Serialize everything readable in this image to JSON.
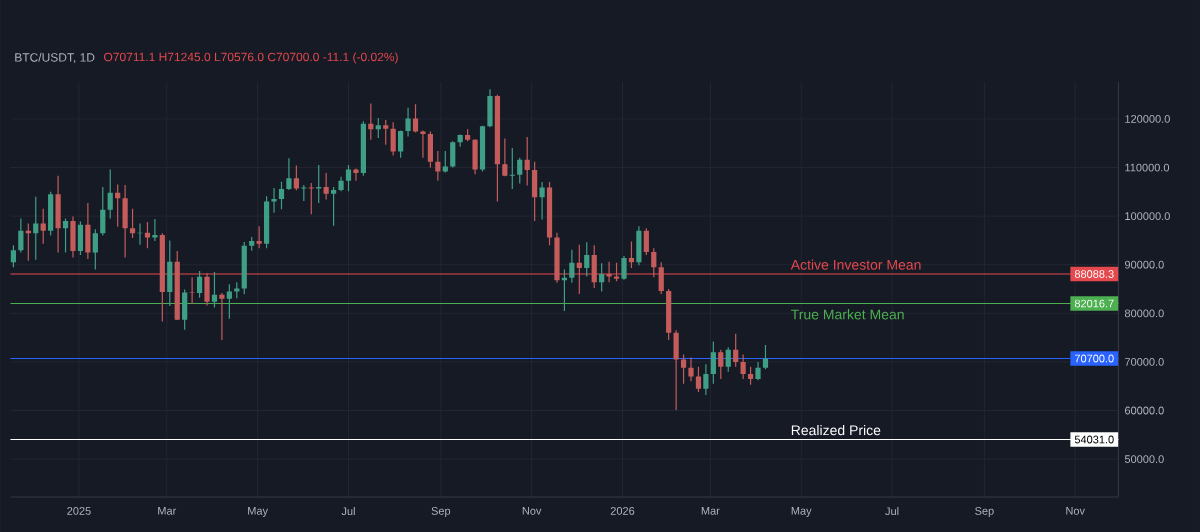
{
  "chart_data": {
    "type": "candlestick",
    "title": "BTC/USDT, 1D",
    "subtitle": "O70711.1 H71245.0 L70576.0 C70700.0 -11.1 (-0.02%)",
    "x": [
      "2024-11-18",
      "2024-11-23",
      "2024-11-28",
      "2024-12-03",
      "2024-12-08",
      "2024-12-13",
      "2024-12-18",
      "2024-12-23",
      "2024-12-28",
      "2025-01-02",
      "2025-01-07",
      "2025-01-12",
      "2025-01-17",
      "2025-01-22",
      "2025-01-27",
      "2025-02-01",
      "2025-02-06",
      "2025-02-11",
      "2025-02-16",
      "2025-02-21",
      "2025-02-26",
      "2025-03-03",
      "2025-03-08",
      "2025-03-13",
      "2025-03-18",
      "2025-03-23",
      "2025-03-28",
      "2025-04-02",
      "2025-04-07",
      "2025-04-12",
      "2025-04-17",
      "2025-04-22",
      "2025-04-27",
      "2025-05-02",
      "2025-05-07",
      "2025-05-12",
      "2025-05-17",
      "2025-05-22",
      "2025-05-27",
      "2025-06-01",
      "2025-06-06",
      "2025-06-11",
      "2025-06-16",
      "2025-06-21",
      "2025-06-26",
      "2025-07-01",
      "2025-07-06",
      "2025-07-11",
      "2025-07-16",
      "2025-07-21",
      "2025-07-26",
      "2025-07-31",
      "2025-08-05",
      "2025-08-10",
      "2025-08-15",
      "2025-08-20",
      "2025-08-25",
      "2025-08-30",
      "2025-09-04",
      "2025-09-09",
      "2025-09-14",
      "2025-09-19",
      "2025-09-24",
      "2025-09-29",
      "2025-10-04",
      "2025-10-09",
      "2025-10-14",
      "2025-10-19",
      "2025-10-24",
      "2025-10-29",
      "2025-11-03",
      "2025-11-08",
      "2025-11-13",
      "2025-11-18",
      "2025-11-23",
      "2025-11-28",
      "2025-12-03",
      "2025-12-08",
      "2025-12-13",
      "2025-12-18",
      "2025-12-23",
      "2025-12-28",
      "2026-01-02",
      "2026-01-07",
      "2026-01-12",
      "2026-01-17",
      "2026-01-22",
      "2026-01-27",
      "2026-02-01",
      "2026-02-06",
      "2026-02-11",
      "2026-02-16",
      "2026-02-21",
      "2026-02-26",
      "2026-03-03",
      "2026-03-08",
      "2026-03-13",
      "2026-03-18",
      "2026-03-23",
      "2026-03-28",
      "2026-04-02",
      "2026-04-07"
    ],
    "ohlc": [
      [
        90500,
        94000,
        89500,
        93000
      ],
      [
        93000,
        99500,
        92500,
        97000
      ],
      [
        97000,
        98500,
        90800,
        96500
      ],
      [
        96500,
        104000,
        91000,
        98500
      ],
      [
        98500,
        101500,
        94300,
        97000
      ],
      [
        97000,
        105000,
        96000,
        104500
      ],
      [
        104500,
        108300,
        92500,
        97500
      ],
      [
        97500,
        99500,
        92500,
        99000
      ],
      [
        99000,
        99900,
        91500,
        92800
      ],
      [
        92800,
        98900,
        92000,
        98200
      ],
      [
        98200,
        102700,
        91200,
        92500
      ],
      [
        92500,
        97300,
        89000,
        96500
      ],
      [
        96500,
        106000,
        96000,
        101300
      ],
      [
        101300,
        109600,
        99500,
        104800
      ],
      [
        104800,
        106500,
        97800,
        103700
      ],
      [
        103700,
        106400,
        91500,
        97500
      ],
      [
        97500,
        101500,
        95500,
        96500
      ],
      [
        96500,
        98500,
        94100,
        96600
      ],
      [
        96600,
        98800,
        93400,
        95600
      ],
      [
        95600,
        99400,
        94900,
        96100
      ],
      [
        96100,
        96500,
        78300,
        84400
      ],
      [
        84400,
        95000,
        81500,
        90600
      ],
      [
        90600,
        92800,
        78600,
        78700
      ],
      [
        78700,
        84900,
        76600,
        84300
      ],
      [
        84300,
        87400,
        81900,
        84200
      ],
      [
        84200,
        88700,
        83200,
        87500
      ],
      [
        87500,
        88300,
        81600,
        82400
      ],
      [
        82400,
        88500,
        81200,
        83800
      ],
      [
        83800,
        84200,
        74500,
        83000
      ],
      [
        83000,
        86000,
        78900,
        84500
      ],
      [
        84500,
        86400,
        83100,
        85100
      ],
      [
        85100,
        94700,
        83900,
        93900
      ],
      [
        93900,
        95700,
        92900,
        94900
      ],
      [
        94900,
        97900,
        93400,
        94300
      ],
      [
        94300,
        104100,
        93400,
        103000
      ],
      [
        103000,
        105800,
        100700,
        103500
      ],
      [
        103500,
        107100,
        101400,
        105600
      ],
      [
        105600,
        111900,
        105400,
        107800
      ],
      [
        107800,
        110400,
        105300,
        105700
      ],
      [
        105700,
        106400,
        103100,
        105900
      ],
      [
        105900,
        106800,
        100400,
        105700
      ],
      [
        105700,
        110500,
        102700,
        106000
      ],
      [
        106000,
        108900,
        103400,
        104600
      ],
      [
        104600,
        106000,
        98000,
        105400
      ],
      [
        105400,
        108100,
        105100,
        107300
      ],
      [
        107300,
        110500,
        105100,
        109600
      ],
      [
        109600,
        109800,
        107300,
        108900
      ],
      [
        108900,
        119500,
        108300,
        119000
      ],
      [
        119000,
        123200,
        115700,
        117900
      ],
      [
        117900,
        120200,
        116100,
        118700
      ],
      [
        118700,
        119800,
        114700,
        118000
      ],
      [
        118000,
        119300,
        112500,
        113300
      ],
      [
        113300,
        117600,
        112000,
        117500
      ],
      [
        117500,
        122300,
        116400,
        120100
      ],
      [
        120100,
        123000,
        117200,
        117400
      ],
      [
        117400,
        117600,
        112000,
        116900
      ],
      [
        116900,
        117400,
        110000,
        111200
      ],
      [
        111200,
        113400,
        107300,
        109200
      ],
      [
        109200,
        113400,
        109000,
        110200
      ],
      [
        110200,
        115400,
        110000,
        115200
      ],
      [
        115200,
        116800,
        114300,
        116700
      ],
      [
        116700,
        117900,
        115400,
        115700
      ],
      [
        115700,
        115800,
        108600,
        109600
      ],
      [
        109600,
        118600,
        109200,
        118500
      ],
      [
        118500,
        126100,
        118300,
        124700
      ],
      [
        124700,
        125000,
        103000,
        110700
      ],
      [
        110700,
        116000,
        108200,
        108300
      ],
      [
        108300,
        114000,
        105600,
        108500
      ],
      [
        108500,
        112000,
        106700,
        111600
      ],
      [
        111600,
        116300,
        106300,
        109500
      ],
      [
        109500,
        111200,
        99000,
        103900
      ],
      [
        103900,
        107000,
        99300,
        105900
      ],
      [
        105900,
        107000,
        94000,
        95600
      ],
      [
        95600,
        96600,
        86300,
        86800
      ],
      [
        86800,
        89000,
        80500,
        87300
      ],
      [
        87300,
        93100,
        86300,
        90400
      ],
      [
        90400,
        94100,
        84000,
        89300
      ],
      [
        89300,
        94600,
        87600,
        92000
      ],
      [
        92000,
        94000,
        85200,
        86400
      ],
      [
        86400,
        90300,
        84500,
        88100
      ],
      [
        88100,
        90600,
        86400,
        87600
      ],
      [
        87600,
        90400,
        86600,
        87100
      ],
      [
        87100,
        91800,
        86900,
        91400
      ],
      [
        91400,
        94800,
        89300,
        90500
      ],
      [
        90500,
        97900,
        89900,
        97000
      ],
      [
        97000,
        97500,
        92000,
        92600
      ],
      [
        92600,
        93400,
        87400,
        89500
      ],
      [
        89500,
        90500,
        84000,
        84600
      ],
      [
        84600,
        85000,
        74500,
        76000
      ],
      [
        76000,
        76500,
        60100,
        70500
      ],
      [
        70500,
        71500,
        65500,
        68800
      ],
      [
        68800,
        70900,
        66000,
        67000
      ],
      [
        67000,
        69000,
        63800,
        64500
      ],
      [
        64500,
        69500,
        63200,
        67500
      ],
      [
        67500,
        74200,
        65500,
        72000
      ],
      [
        72000,
        72500,
        66500,
        69000
      ],
      [
        69000,
        73000,
        68000,
        72500
      ],
      [
        72500,
        75800,
        69000,
        70000
      ],
      [
        70000,
        71500,
        66500,
        67500
      ],
      [
        67500,
        69000,
        65300,
        66500
      ],
      [
        66500,
        70000,
        66200,
        68800
      ],
      [
        68800,
        73500,
        68500,
        70700
      ]
    ],
    "colors": [
      "#3f9f86",
      "#3f9f86",
      "#c45c5c",
      "#3f9f86",
      "#c45c5c",
      "#3f9f86",
      "#c45c5c",
      "#3f9f86",
      "#c45c5c",
      "#3f9f86",
      "#c45c5c",
      "#3f9f86",
      "#3f9f86",
      "#3f9f86",
      "#c45c5c",
      "#c45c5c",
      "#c45c5c",
      "#3f9f86",
      "#c45c5c",
      "#3f9f86",
      "#c45c5c",
      "#3f9f86",
      "#c45c5c",
      "#3f9f86",
      "#c45c5c",
      "#3f9f86",
      "#c45c5c",
      "#3f9f86",
      "#c45c5c",
      "#3f9f86",
      "#3f9f86",
      "#3f9f86",
      "#3f9f86",
      "#c45c5c",
      "#3f9f86",
      "#3f9f86",
      "#3f9f86",
      "#3f9f86",
      "#c45c5c",
      "#3f9f86",
      "#c45c5c",
      "#3f9f86",
      "#c45c5c",
      "#3f9f86",
      "#3f9f86",
      "#3f9f86",
      "#c45c5c",
      "#3f9f86",
      "#c45c5c",
      "#3f9f86",
      "#c45c5c",
      "#c45c5c",
      "#3f9f86",
      "#3f9f86",
      "#c45c5c",
      "#c45c5c",
      "#c45c5c",
      "#c45c5c",
      "#3f9f86",
      "#3f9f86",
      "#3f9f86",
      "#c45c5c",
      "#c45c5c",
      "#3f9f86",
      "#3f9f86",
      "#c45c5c",
      "#c45c5c",
      "#3f9f86",
      "#3f9f86",
      "#c45c5c",
      "#c45c5c",
      "#3f9f86",
      "#c45c5c",
      "#c45c5c",
      "#3f9f86",
      "#3f9f86",
      "#c45c5c",
      "#3f9f86",
      "#c45c5c",
      "#3f9f86",
      "#c45c5c",
      "#c45c5c",
      "#3f9f86",
      "#c45c5c",
      "#3f9f86",
      "#c45c5c",
      "#c45c5c",
      "#c45c5c",
      "#c45c5c",
      "#c45c5c",
      "#c45c5c",
      "#c45c5c",
      "#c45c5c",
      "#3f9f86",
      "#3f9f86",
      "#c45c5c",
      "#3f9f86",
      "#c45c5c",
      "#c45c5c",
      "#c45c5c",
      "#3f9f86",
      "#3f9f86"
    ],
    "xlim": [
      "2024-11-16",
      "2026-11-30"
    ],
    "ylim": [
      42200,
      127600
    ],
    "xticks": [
      {
        "value": "2025-01-01",
        "label": "2025"
      },
      {
        "value": "2025-03-01",
        "label": "Mar"
      },
      {
        "value": "2025-05-01",
        "label": "May"
      },
      {
        "value": "2025-07-01",
        "label": "Jul"
      },
      {
        "value": "2025-09-01",
        "label": "Sep"
      },
      {
        "value": "2025-11-01",
        "label": "Nov"
      },
      {
        "value": "2026-01-01",
        "label": "2026"
      },
      {
        "value": "2026-03-01",
        "label": "Mar"
      },
      {
        "value": "2026-05-01",
        "label": "May"
      },
      {
        "value": "2026-07-01",
        "label": "Jul"
      },
      {
        "value": "2026-09-01",
        "label": "Sep"
      },
      {
        "value": "2026-11-01",
        "label": "Nov"
      }
    ],
    "yticks": [
      {
        "value": 50000,
        "label": "50000.0"
      },
      {
        "value": 60000,
        "label": "60000.0"
      },
      {
        "value": 70000,
        "label": "70000.0"
      },
      {
        "value": 80000,
        "label": "80000.0"
      },
      {
        "value": 90000,
        "label": "90000.0"
      },
      {
        "value": 100000,
        "label": "100000.0"
      },
      {
        "value": 110000,
        "label": "110000.0"
      },
      {
        "value": 120000,
        "label": "120000.0"
      }
    ],
    "grid": true,
    "ref_lines": [
      {
        "axis": "y",
        "value": 88088.3,
        "label": "Active Investor Mean",
        "color": "#e5484d"
      },
      {
        "axis": "y",
        "value": 82016.7,
        "label": "True Market Mean",
        "color": "#4caf50"
      },
      {
        "axis": "y",
        "value": 70700,
        "color": "#2962ff"
      },
      {
        "axis": "y",
        "value": 54031,
        "label": "Realized Price",
        "color": "#ffffff"
      }
    ],
    "annotations": [
      {
        "text": "88088.3",
        "y": 88088.3
      },
      {
        "text": "82016.7",
        "y": 82016.7
      },
      {
        "text": "70700.0",
        "y": 70700
      },
      {
        "text": "54031.0",
        "y": 54031
      }
    ]
  }
}
